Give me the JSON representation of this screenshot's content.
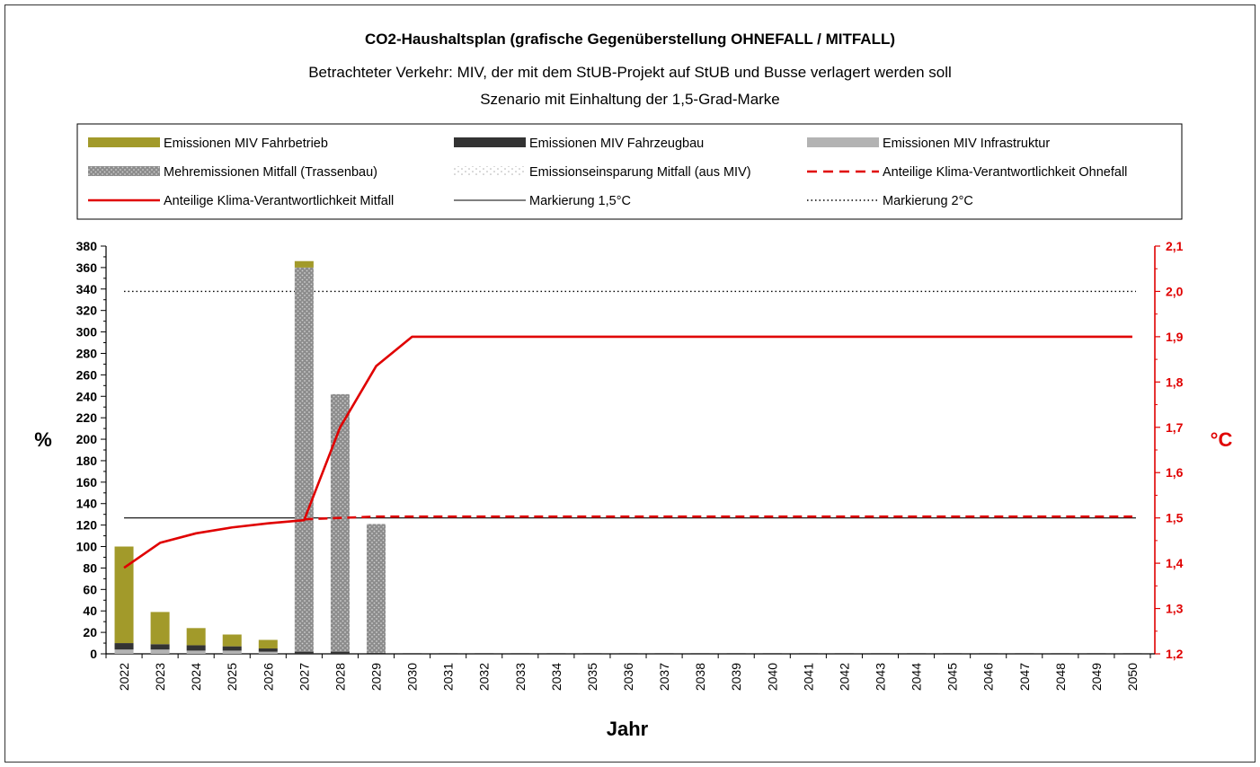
{
  "chart_data": {
    "type": "bar",
    "title": "CO2-Haushaltsplan (grafische Gegenüberstellung OHNEFALL / MITFALL)",
    "subtitle1": "Betrachteter Verkehr: MIV, der mit dem StUB-Projekt auf StUB und Busse verlagert werden soll",
    "subtitle2": "Szenario mit Einhaltung der 1,5-Grad-Marke",
    "xlabel": "Jahr",
    "ylabel": "%",
    "y2label": "°C",
    "ylim": [
      0,
      380
    ],
    "y2lim": [
      1.2,
      2.1
    ],
    "yticks": [
      "0",
      "20",
      "40",
      "60",
      "80",
      "100",
      "120",
      "140",
      "160",
      "180",
      "200",
      "220",
      "240",
      "260",
      "280",
      "300",
      "320",
      "340",
      "360",
      "380"
    ],
    "y2ticks": [
      "1,2",
      "1,3",
      "1,4",
      "1,5",
      "1,6",
      "1,7",
      "1,8",
      "1,9",
      "2,0",
      "2,1"
    ],
    "categories": [
      "2022",
      "2023",
      "2024",
      "2025",
      "2026",
      "2027",
      "2028",
      "2029",
      "2030",
      "2031",
      "2032",
      "2033",
      "2034",
      "2035",
      "2036",
      "2037",
      "2038",
      "2039",
      "2040",
      "2041",
      "2042",
      "2043",
      "2044",
      "2045",
      "2046",
      "2047",
      "2048",
      "2049",
      "2050"
    ],
    "colors": {
      "fahrbetrieb": "#a29a2a",
      "fahrzeugbau": "#333333",
      "infrastruktur": "#b3b3b3",
      "trassenbau": "#8a8a8a",
      "einsparung": "#ffffff",
      "klima": "#e00000",
      "marker": "#000000"
    },
    "legend": [
      {
        "key": "fahrbetrieb",
        "label": "Emissionen MIV Fahrbetrieb"
      },
      {
        "key": "fahrzeugbau",
        "label": "Emissionen MIV Fahrzeugbau"
      },
      {
        "key": "infrastruktur",
        "label": "Emissionen MIV Infrastruktur"
      },
      {
        "key": "trassenbau",
        "label": "Mehremissionen Mitfall (Trassenbau)"
      },
      {
        "key": "einsparung",
        "label": "Emissionseinsparung Mitfall (aus MIV)"
      },
      {
        "key": "ohnefall",
        "label": "Anteilige Klima-Verantwortlichkeit Ohnefall"
      },
      {
        "key": "mitfall",
        "label": "Anteilige Klima-Verantwortlichkeit Mitfall"
      },
      {
        "key": "mark15",
        "label": "Markierung 1,5°C"
      },
      {
        "key": "mark20",
        "label": "Markierung 2°C"
      }
    ],
    "series": [
      {
        "name": "Emissionen MIV Infrastruktur",
        "key": "infrastruktur",
        "values": [
          4,
          4,
          3,
          3,
          2,
          0,
          0,
          0,
          0,
          0,
          0,
          0,
          0,
          0,
          0,
          0,
          0,
          0,
          0,
          0,
          0,
          0,
          0,
          0,
          0,
          0,
          0,
          0,
          0
        ]
      },
      {
        "name": "Emissionen MIV Fahrzeugbau",
        "key": "fahrzeugbau",
        "values": [
          6,
          5,
          5,
          4,
          3,
          2,
          2,
          1,
          0,
          0,
          0,
          0,
          0,
          0,
          0,
          0,
          0,
          0,
          0,
          0,
          0,
          0,
          0,
          0,
          0,
          0,
          0,
          0,
          0
        ]
      },
      {
        "name": "Mehremissionen Mitfall (Trassenbau)",
        "key": "trassenbau",
        "values": [
          0,
          0,
          0,
          0,
          0,
          358,
          240,
          120,
          0,
          0,
          0,
          0,
          0,
          0,
          0,
          0,
          0,
          0,
          0,
          0,
          0,
          0,
          0,
          0,
          0,
          0,
          0,
          0,
          0
        ]
      },
      {
        "name": "Emissionen MIV Fahrbetrieb",
        "key": "fahrbetrieb",
        "values": [
          90,
          30,
          16,
          11,
          8,
          6,
          0,
          0,
          0,
          0,
          0,
          0,
          0,
          0,
          0,
          0,
          0,
          0,
          0,
          0,
          0,
          0,
          0,
          0,
          0,
          0,
          0,
          0,
          0
        ]
      },
      {
        "name": "Anteilige Klima-Verantwortlichkeit Mitfall",
        "key": "mitfall",
        "axis": "right",
        "values": [
          1.39,
          1.445,
          1.466,
          1.479,
          1.488,
          1.495,
          1.7,
          1.835,
          1.9,
          1.9,
          1.9,
          1.9,
          1.9,
          1.9,
          1.9,
          1.9,
          1.9,
          1.9,
          1.9,
          1.9,
          1.9,
          1.9,
          1.9,
          1.9,
          1.9,
          1.9,
          1.9,
          1.9,
          1.9
        ]
      },
      {
        "name": "Anteilige Klima-Verantwortlichkeit Ohnefall",
        "key": "ohnefall",
        "axis": "right",
        "values": [
          null,
          null,
          null,
          null,
          null,
          1.497,
          1.5,
          1.503,
          1.503,
          1.503,
          1.503,
          1.503,
          1.503,
          1.503,
          1.503,
          1.503,
          1.503,
          1.503,
          1.503,
          1.503,
          1.503,
          1.503,
          1.503,
          1.503,
          1.503,
          1.503,
          1.503,
          1.503,
          1.503
        ]
      }
    ],
    "markers": [
      {
        "name": "Markierung 1,5°C",
        "key": "mark15",
        "value": 1.5,
        "axis": "right"
      },
      {
        "name": "Markierung 2°C",
        "key": "mark20",
        "value": 2.0,
        "axis": "right"
      }
    ]
  }
}
